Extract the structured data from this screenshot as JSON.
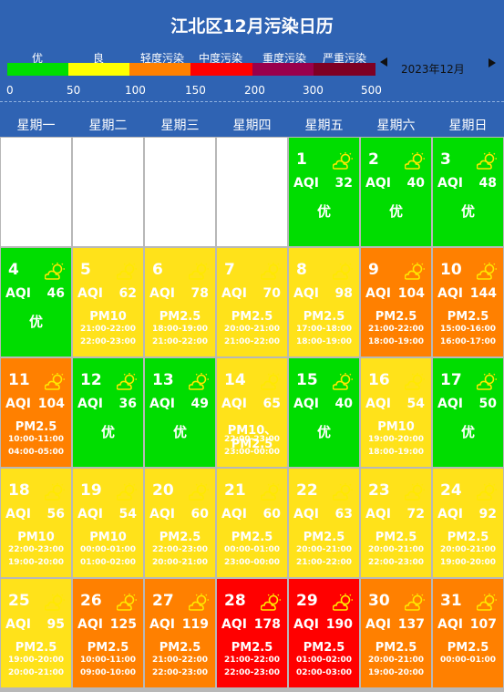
{
  "title": "江北区12月污染日历",
  "month_label": "2023年12月",
  "legend": {
    "labels": [
      "优",
      "良",
      "轻度污染",
      "中度污染",
      "重度污染",
      "严重污染"
    ],
    "colors": [
      "#00dd00",
      "#ffff00",
      "#ff8000",
      "#ff0000",
      "#99004c",
      "#7e0023"
    ],
    "ticks": [
      "0",
      "50",
      "100",
      "150",
      "200",
      "300",
      "500"
    ]
  },
  "weekdays": [
    "星期一",
    "星期二",
    "星期三",
    "星期四",
    "星期五",
    "星期六",
    "星期日"
  ],
  "aqi_label": "AQI",
  "icon": "partly-cloudy-icon",
  "days": [
    {
      "day": "1",
      "aqi": "32",
      "level": "good",
      "status": "优"
    },
    {
      "day": "2",
      "aqi": "40",
      "level": "good",
      "status": "优"
    },
    {
      "day": "3",
      "aqi": "48",
      "level": "good",
      "status": "优"
    },
    {
      "day": "4",
      "aqi": "46",
      "level": "good",
      "status": "优"
    },
    {
      "day": "5",
      "aqi": "62",
      "level": "fair",
      "pollutant": "PM10",
      "times": [
        "21:00-22:00",
        "22:00-23:00"
      ]
    },
    {
      "day": "6",
      "aqi": "78",
      "level": "fair",
      "pollutant": "PM2.5",
      "times": [
        "18:00-19:00",
        "21:00-22:00"
      ]
    },
    {
      "day": "7",
      "aqi": "70",
      "level": "fair",
      "pollutant": "PM2.5",
      "times": [
        "20:00-21:00",
        "21:00-22:00"
      ]
    },
    {
      "day": "8",
      "aqi": "98",
      "level": "fair",
      "pollutant": "PM2.5",
      "times": [
        "17:00-18:00",
        "18:00-19:00"
      ]
    },
    {
      "day": "9",
      "aqi": "104",
      "level": "light",
      "pollutant": "PM2.5",
      "times": [
        "21:00-22:00",
        "18:00-19:00"
      ]
    },
    {
      "day": "10",
      "aqi": "144",
      "level": "light",
      "pollutant": "PM2.5",
      "times": [
        "15:00-16:00",
        "16:00-17:00"
      ]
    },
    {
      "day": "11",
      "aqi": "104",
      "level": "light",
      "pollutant": "PM2.5",
      "times": [
        "10:00-11:00",
        "04:00-05:00"
      ]
    },
    {
      "day": "12",
      "aqi": "36",
      "level": "good",
      "status": "优"
    },
    {
      "day": "13",
      "aqi": "49",
      "level": "good",
      "status": "优"
    },
    {
      "day": "14",
      "aqi": "65",
      "level": "fair",
      "pollutant": "PM10、PM2.5",
      "times": [
        "22:00-23:00",
        "23:00-00:00"
      ]
    },
    {
      "day": "15",
      "aqi": "40",
      "level": "good",
      "status": "优"
    },
    {
      "day": "16",
      "aqi": "54",
      "level": "fair",
      "pollutant": "PM10",
      "times": [
        "19:00-20:00",
        "18:00-19:00"
      ]
    },
    {
      "day": "17",
      "aqi": "50",
      "level": "good",
      "status": "优"
    },
    {
      "day": "18",
      "aqi": "56",
      "level": "fair",
      "pollutant": "PM10",
      "times": [
        "22:00-23:00",
        "19:00-20:00"
      ]
    },
    {
      "day": "19",
      "aqi": "54",
      "level": "fair",
      "pollutant": "PM10",
      "times": [
        "00:00-01:00",
        "01:00-02:00"
      ]
    },
    {
      "day": "20",
      "aqi": "60",
      "level": "fair",
      "pollutant": "PM2.5",
      "times": [
        "22:00-23:00",
        "20:00-21:00"
      ]
    },
    {
      "day": "21",
      "aqi": "60",
      "level": "fair",
      "pollutant": "PM2.5",
      "times": [
        "00:00-01:00",
        "23:00-00:00"
      ]
    },
    {
      "day": "22",
      "aqi": "63",
      "level": "fair",
      "pollutant": "PM2.5",
      "times": [
        "20:00-21:00",
        "21:00-22:00"
      ]
    },
    {
      "day": "23",
      "aqi": "72",
      "level": "fair",
      "pollutant": "PM2.5",
      "times": [
        "20:00-21:00",
        "22:00-23:00"
      ]
    },
    {
      "day": "24",
      "aqi": "92",
      "level": "fair",
      "pollutant": "PM2.5",
      "times": [
        "20:00-21:00",
        "19:00-20:00"
      ]
    },
    {
      "day": "25",
      "aqi": "95",
      "level": "fair",
      "pollutant": "PM2.5",
      "times": [
        "19:00-20:00",
        "20:00-21:00"
      ]
    },
    {
      "day": "26",
      "aqi": "125",
      "level": "light",
      "pollutant": "PM2.5",
      "times": [
        "10:00-11:00",
        "09:00-10:00"
      ]
    },
    {
      "day": "27",
      "aqi": "119",
      "level": "light",
      "pollutant": "PM2.5",
      "times": [
        "21:00-22:00",
        "22:00-23:00"
      ]
    },
    {
      "day": "28",
      "aqi": "178",
      "level": "moderate",
      "pollutant": "PM2.5",
      "times": [
        "21:00-22:00",
        "22:00-23:00"
      ]
    },
    {
      "day": "29",
      "aqi": "190",
      "level": "moderate",
      "pollutant": "PM2.5",
      "times": [
        "01:00-02:00",
        "02:00-03:00"
      ]
    },
    {
      "day": "30",
      "aqi": "137",
      "level": "light",
      "pollutant": "PM2.5",
      "times": [
        "20:00-21:00",
        "19:00-20:00"
      ]
    },
    {
      "day": "31",
      "aqi": "107",
      "level": "light",
      "pollutant": "PM2.5",
      "times": [
        "00:00-01:00"
      ]
    }
  ]
}
